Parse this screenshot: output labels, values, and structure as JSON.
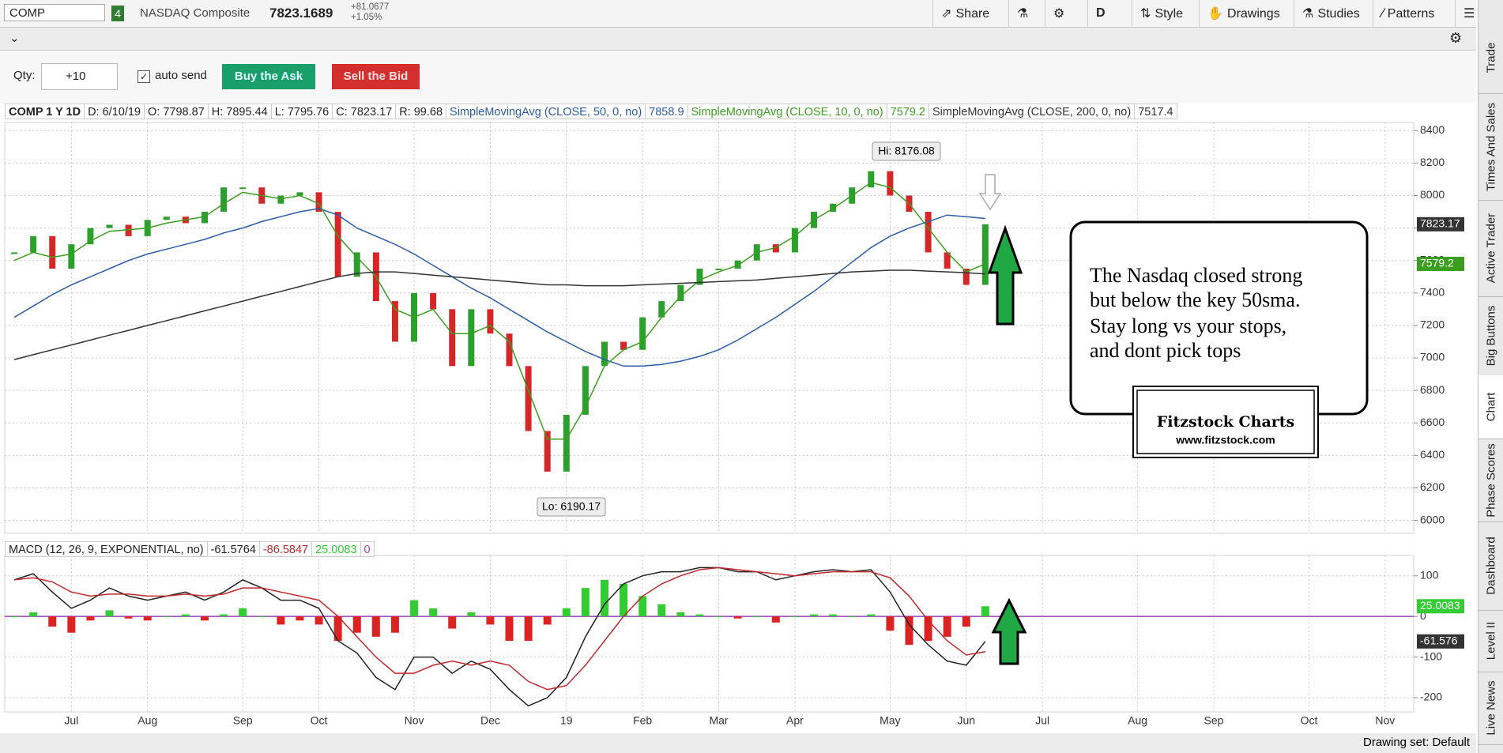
{
  "toolbar": {
    "symbol": "COMP",
    "link_group": "4",
    "description": "NASDAQ Composite",
    "last": "7823.1689",
    "net_change": "+81.0677",
    "pct_change": "+1.05%",
    "buttons": [
      "Share",
      "D",
      "Style",
      "Drawings",
      "Studies",
      "Patterns"
    ]
  },
  "order_bar": {
    "qty_label": "Qty:",
    "qty": "+10",
    "auto_send": "auto send",
    "buy": "Buy the Ask",
    "sell": "Sell the Bid"
  },
  "chart_header": {
    "symbol": "COMP 1 Y 1D",
    "date": "D: 6/10/19",
    "open": "O: 7798.87",
    "high": "H: 7895.44",
    "low": "L: 7795.76",
    "close": "C: 7823.17",
    "range": "R: 99.68"
  },
  "chart_data": [
    {
      "type": "line",
      "ylim": [
        5920,
        8450
      ],
      "yticks": [
        6000,
        6200,
        6400,
        6600,
        6800,
        7000,
        7200,
        7400,
        7600,
        7800,
        8000,
        8200,
        8400
      ],
      "grid": true,
      "series": [
        {
          "style": "candle",
          "color": "#2ca02c",
          "negative_color": "#d62728",
          "values": [
            7650,
            7750,
            7550,
            7700,
            7800,
            7820,
            7750,
            7850,
            7870,
            7830,
            7900,
            8050,
            8050,
            7950,
            8000,
            8020,
            7900,
            7500,
            7650,
            7350,
            7100,
            7400,
            7300,
            6950,
            7300,
            7150,
            6950,
            6550,
            6300,
            6650,
            6950,
            7100,
            7050,
            7250,
            7350,
            7450,
            7550,
            7550,
            7600,
            7700,
            7650,
            7800,
            7900,
            7950,
            8050,
            8150,
            8000,
            7900,
            7650,
            7550,
            7450,
            7823.17,
            null,
            null,
            null,
            null,
            null,
            null,
            null,
            null,
            null,
            null,
            null,
            null,
            null,
            null,
            null,
            null,
            null,
            null,
            null,
            null,
            null,
            null
          ]
        },
        {
          "name": "SimpleMovingAvg (CLOSE, 50, 0, no)",
          "color": "#2a5caa",
          "values": [
            7250,
            7320,
            7390,
            7450,
            7500,
            7550,
            7600,
            7640,
            7670,
            7700,
            7730,
            7770,
            7800,
            7840,
            7870,
            7900,
            7920,
            7880,
            7800,
            7750,
            7700,
            7640,
            7570,
            7500,
            7430,
            7370,
            7300,
            7230,
            7160,
            7100,
            7040,
            6990,
            6950,
            6950,
            6960,
            6980,
            7010,
            7050,
            7110,
            7180,
            7250,
            7330,
            7410,
            7500,
            7590,
            7680,
            7750,
            7800,
            7840,
            7880,
            7870,
            7858.9,
            null,
            null,
            null,
            null,
            null,
            null,
            null,
            null,
            null,
            null,
            null,
            null,
            null,
            null,
            null,
            null,
            null,
            null,
            null,
            null,
            null,
            null
          ]
        },
        {
          "name": "SimpleMovingAvg (CLOSE, 10, 0, no)",
          "color": "#3c9e1f",
          "values": [
            7600,
            7650,
            7620,
            7640,
            7720,
            7780,
            7790,
            7800,
            7830,
            7850,
            7870,
            7950,
            8020,
            8000,
            7980,
            8000,
            7950,
            7750,
            7620,
            7500,
            7300,
            7250,
            7300,
            7150,
            7150,
            7200,
            7100,
            6800,
            6500,
            6500,
            6700,
            6950,
            7050,
            7100,
            7250,
            7380,
            7480,
            7530,
            7570,
            7650,
            7680,
            7750,
            7850,
            7920,
            8000,
            8080,
            8050,
            7950,
            7800,
            7650,
            7530,
            7579.2,
            null,
            null,
            null,
            null,
            null,
            null,
            null,
            null,
            null,
            null,
            null,
            null,
            null,
            null,
            null,
            null,
            null,
            null,
            null,
            null,
            null,
            null
          ]
        },
        {
          "name": "SimpleMovingAvg (CLOSE, 200, 0, no)",
          "color": "#333333",
          "values": [
            6990,
            7020,
            7050,
            7080,
            7110,
            7140,
            7170,
            7200,
            7230,
            7260,
            7290,
            7320,
            7350,
            7380,
            7410,
            7440,
            7470,
            7500,
            7520,
            7530,
            7530,
            7520,
            7510,
            7500,
            7490,
            7480,
            7470,
            7460,
            7450,
            7450,
            7445,
            7445,
            7445,
            7450,
            7455,
            7460,
            7465,
            7470,
            7475,
            7480,
            7490,
            7500,
            7510,
            7520,
            7530,
            7535,
            7540,
            7540,
            7535,
            7530,
            7525,
            7517.4,
            null,
            null,
            null,
            null,
            null,
            null,
            null,
            null,
            null,
            null,
            null,
            null,
            null,
            null,
            null,
            null,
            null,
            null,
            null,
            null,
            null,
            null
          ]
        }
      ],
      "annotations": [
        "Hi: 8176.08",
        "Lo: 6190.17"
      ],
      "badges": [
        {
          "value": 7823.17,
          "color": "#333333"
        },
        {
          "value": 7579.2,
          "color": "#3c9e1f"
        }
      ]
    },
    {
      "type": "line",
      "title": "MACD (12, 26, 9, EXPONENTIAL, no)",
      "categories": [
        null,
        null,
        null,
        "Jul",
        null,
        null,
        null,
        "Aug",
        null,
        null,
        null,
        null,
        "Sep",
        null,
        null,
        null,
        "Oct",
        null,
        null,
        null,
        null,
        "Nov",
        null,
        null,
        null,
        "Dec",
        null,
        null,
        null,
        "19",
        null,
        null,
        null,
        "Feb",
        null,
        null,
        null,
        "Mar",
        null,
        null,
        null,
        "Apr",
        null,
        null,
        null,
        null,
        "May",
        null,
        null,
        null,
        "Jun",
        null,
        null,
        null,
        "Jul",
        null,
        null,
        null,
        null,
        "Aug",
        null,
        null,
        null,
        "Sep",
        null,
        null,
        null,
        null,
        "Oct",
        null,
        null,
        null,
        "Nov",
        null
      ],
      "ylim": [
        -235,
        150
      ],
      "yticks": [
        -200,
        -100,
        0,
        100
      ],
      "grid": true,
      "zero_line": 0,
      "zero_color": "#a040c0",
      "series": [
        {
          "color": "#222222",
          "values": [
            90,
            105,
            60,
            20,
            40,
            70,
            50,
            40,
            50,
            60,
            40,
            60,
            90,
            70,
            40,
            40,
            20,
            -60,
            -90,
            -150,
            -180,
            -100,
            -100,
            -140,
            -110,
            -130,
            -180,
            -220,
            -200,
            -150,
            -50,
            30,
            80,
            100,
            110,
            110,
            120,
            120,
            110,
            110,
            90,
            100,
            110,
            115,
            110,
            115,
            60,
            -20,
            -70,
            -110,
            -120,
            -61.5764,
            null,
            null,
            null,
            null,
            null,
            null,
            null,
            null,
            null,
            null,
            null,
            null,
            null,
            null,
            null,
            null,
            null,
            null,
            null,
            null,
            null,
            null
          ]
        },
        {
          "color": "#c0282b",
          "values": [
            90,
            95,
            85,
            60,
            50,
            55,
            55,
            50,
            50,
            55,
            50,
            55,
            70,
            70,
            60,
            50,
            40,
            0,
            -50,
            -100,
            -140,
            -140,
            -120,
            -110,
            -120,
            -110,
            -120,
            -160,
            -180,
            -170,
            -120,
            -60,
            0,
            50,
            80,
            100,
            115,
            120,
            115,
            110,
            105,
            100,
            105,
            110,
            110,
            110,
            95,
            50,
            -10,
            -60,
            -95,
            -86.5847,
            null,
            null,
            null,
            null,
            null,
            null,
            null,
            null,
            null,
            null,
            null,
            null,
            null,
            null,
            null,
            null,
            null,
            null,
            null,
            null,
            null,
            null
          ]
        },
        {
          "style": "histogram",
          "color": "#33cc33",
          "negative_color": "#dd2222",
          "values": [
            0,
            10,
            -25,
            -40,
            -10,
            15,
            -5,
            -10,
            0,
            5,
            -10,
            5,
            20,
            0,
            -20,
            -10,
            -20,
            -60,
            -40,
            -50,
            -40,
            40,
            20,
            -30,
            10,
            -20,
            -60,
            -60,
            -20,
            20,
            70,
            90,
            80,
            50,
            30,
            10,
            5,
            0,
            -5,
            0,
            -15,
            0,
            5,
            5,
            0,
            5,
            -35,
            -70,
            -60,
            -50,
            -25,
            25.0083,
            null,
            null,
            null,
            null,
            null,
            null,
            null,
            null,
            null,
            null,
            null,
            null,
            null,
            null,
            null,
            null,
            null,
            null,
            null,
            null,
            null,
            null
          ]
        }
      ],
      "badges": [
        {
          "value": 25.0083,
          "color": "#33cc33"
        },
        {
          "value": -61.576,
          "color": "#333333"
        }
      ]
    }
  ],
  "note": {
    "lines": [
      "The Nasdaq closed strong",
      "but below the key 50sma.",
      "Stay long vs your stops,",
      "and dont pick tops"
    ],
    "logo_title": "Fitzstock Charts",
    "logo_url": "www.fitzstock.com"
  },
  "side_tabs": [
    "Trade",
    "Times And Sales",
    "Active Trader",
    "Big Buttons",
    "Chart",
    "Phase Scores",
    "Dashboard",
    "Level II",
    "Live News"
  ],
  "footer": {
    "drawing_set": "Drawing set: Default"
  }
}
